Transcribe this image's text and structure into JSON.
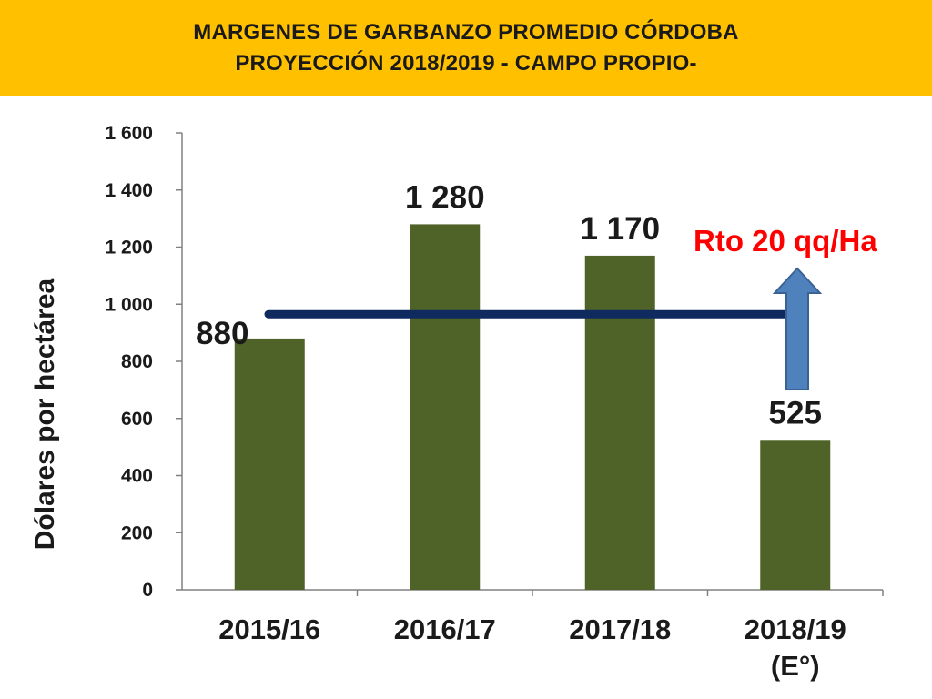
{
  "header": {
    "title_line1": "MARGENES DE GARBANZO PROMEDIO CÓRDOBA",
    "title_line2": "PROYECCIÓN 2018/2019 - CAMPO PROPIO-"
  },
  "colors": {
    "header_bg": "#ffc000",
    "bar": "#4f6228",
    "average_line": "#0f2a5e",
    "arrow": "#4f81bd",
    "annotation": "#ff0000"
  },
  "chart_data": {
    "type": "bar",
    "categories": [
      "2015/16",
      "2016/17",
      "2017/18",
      "2018/19\n(E°)"
    ],
    "values": [
      880,
      1280,
      1170,
      525
    ],
    "data_labels": [
      "880",
      "1 280",
      "1 170",
      "525"
    ],
    "ylabel": "Dólares por hectárea",
    "ylim": [
      0,
      1600
    ],
    "yticks": [
      0,
      200,
      400,
      600,
      800,
      1000,
      1200,
      1400,
      1600
    ],
    "ytick_labels": [
      "0",
      "200",
      "400",
      "600",
      "800",
      "1 000",
      "1 200",
      "1 400",
      "1 600"
    ],
    "average_line_value": 965,
    "annotation": "Rto 20 qq/Ha",
    "annotation_arrow": "up",
    "grid": false,
    "legend": "none"
  }
}
